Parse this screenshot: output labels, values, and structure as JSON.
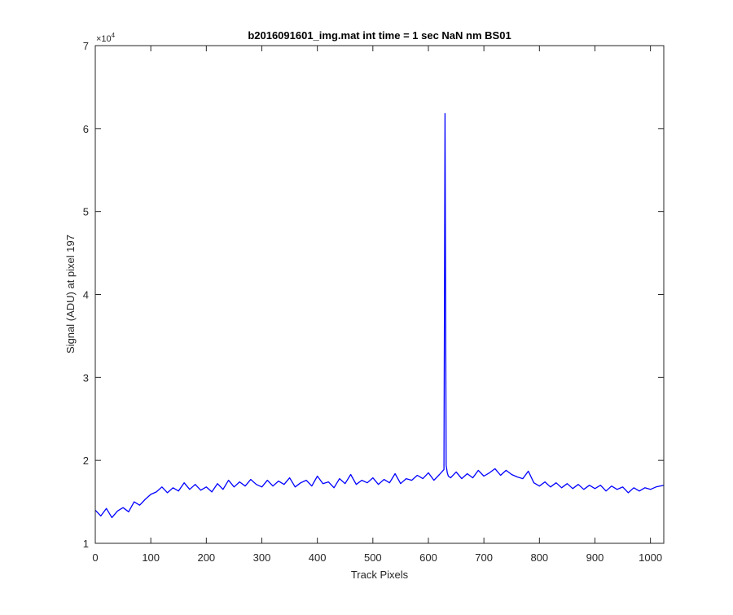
{
  "chart_data": {
    "type": "line",
    "title": "b2016091601_img.mat int time = 1 sec  NaN nm BS01",
    "xlabel": "Track Pixels",
    "ylabel": "Signal (ADU) at pixel 197",
    "xlim": [
      0,
      1024
    ],
    "ylim": [
      10000,
      70000
    ],
    "x_ticks": [
      0,
      100,
      200,
      300,
      400,
      500,
      600,
      700,
      800,
      900,
      1000
    ],
    "y_ticks": [
      10000,
      20000,
      30000,
      40000,
      50000,
      60000,
      70000
    ],
    "y_tick_labels": [
      "1",
      "2",
      "3",
      "4",
      "5",
      "6",
      "7"
    ],
    "y_exponent": "×10",
    "y_exponent_power": "4",
    "grid": false,
    "color": "#0000ff",
    "series": [
      {
        "x": [
          0,
          10,
          20,
          30,
          40,
          50,
          60,
          70,
          80,
          90,
          100,
          110,
          120,
          130,
          140,
          150,
          160,
          170,
          180,
          190,
          200,
          210,
          220,
          230,
          240,
          250,
          260,
          270,
          280,
          290,
          300,
          310,
          320,
          330,
          340,
          350,
          360,
          370,
          380,
          390,
          400,
          410,
          420,
          430,
          440,
          450,
          460,
          470,
          480,
          490,
          500,
          510,
          520,
          530,
          540,
          550,
          560,
          570,
          580,
          590,
          600,
          610,
          620,
          628,
          630,
          632,
          634,
          636,
          640,
          650,
          660,
          670,
          680,
          690,
          700,
          710,
          720,
          730,
          740,
          750,
          760,
          770,
          780,
          790,
          800,
          810,
          820,
          830,
          840,
          850,
          860,
          870,
          880,
          890,
          900,
          910,
          920,
          930,
          940,
          950,
          960,
          970,
          980,
          990,
          1000,
          1010,
          1024
        ],
        "y": [
          14000,
          13300,
          14200,
          13100,
          13900,
          14300,
          13800,
          15000,
          14600,
          15300,
          15900,
          16200,
          16800,
          16100,
          16700,
          16300,
          17300,
          16500,
          17100,
          16400,
          16800,
          16200,
          17200,
          16500,
          17600,
          16800,
          17400,
          16900,
          17700,
          17100,
          16800,
          17600,
          16900,
          17500,
          17100,
          17900,
          16800,
          17300,
          17600,
          16900,
          18100,
          17200,
          17400,
          16700,
          17800,
          17200,
          18300,
          17100,
          17600,
          17300,
          17900,
          17100,
          17700,
          17300,
          18400,
          17200,
          17800,
          17600,
          18200,
          17800,
          18500,
          17600,
          18300,
          18900,
          61800,
          19400,
          18500,
          18100,
          17900,
          18600,
          17800,
          18400,
          17900,
          18800,
          18100,
          18500,
          19000,
          18200,
          18800,
          18300,
          18000,
          17800,
          18700,
          17300,
          16900,
          17400,
          16800,
          17300,
          16700,
          17200,
          16600,
          17100,
          16500,
          17000,
          16600,
          17000,
          16300,
          16900,
          16500,
          16800,
          16100,
          16700,
          16300,
          16700,
          16500,
          16800,
          17000
        ]
      }
    ]
  }
}
